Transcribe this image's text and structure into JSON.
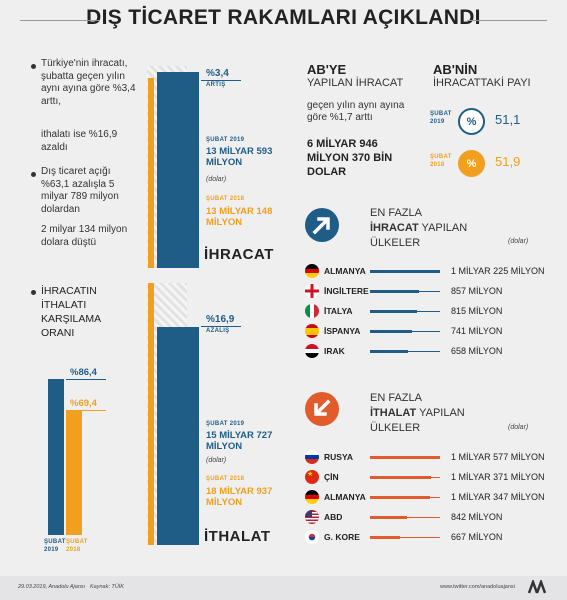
{
  "title": "DIŞ TİCARET RAKAMLARI AÇIKLANDI",
  "colors": {
    "blue": "#1f5d86",
    "orange": "#f0a01e",
    "red": "#e25b2a"
  },
  "left_notes": {
    "n1": "Türkiye'nin ihracatı, şubatta geçen yılın aynı ayına göre %3,4 arttı,",
    "n2": "ithalatı ise %16,9 azaldı",
    "n3": "Dış ticaret açığı %63,1 azalışla 5 milyar 789 milyon dolardan",
    "n4": "2 milyar 134 milyon dolara düştü",
    "n5": "İHRACATIN İTHALATI KARŞILAMA ORANI"
  },
  "export": {
    "pct": "%3,4",
    "pct_label": "ARTIŞ",
    "y2019_label": "ŞUBAT 2019",
    "y2019_value": "13 MİLYAR 593 MİLYON",
    "unit": "(dolar)",
    "y2018_label": "ŞUBAT 2018",
    "y2018_value": "13 MİLYAR 148 MİLYON",
    "name": "İHRACAT"
  },
  "import": {
    "pct": "%16,9",
    "pct_label": "AZALIŞ",
    "y2019_label": "ŞUBAT 2019",
    "y2019_value": "15 MİLYAR 727 MİLYON",
    "unit": "(dolar)",
    "y2018_label": "ŞUBAT 2018",
    "y2018_value": "18 MİLYAR 937 MİLYON",
    "name": "İTHALAT"
  },
  "coverage": {
    "v2019": "%86,4",
    "v2018": "%69,4",
    "l2019": "ŞUBAT 2019",
    "l2018": "ŞUBAT 2018"
  },
  "eu": {
    "h1": "AB'YE",
    "s1": "YAPILAN İHRACAT",
    "d1": "geçen yılın aynı ayına göre %1,7 arttı",
    "d2": "6 MİLYAR 946 MİLYON 370 BİN DOLAR",
    "h2": "AB'NİN",
    "s2": "İHRACATTAKİ PAYI",
    "p2019_label": "ŞUBAT 2019",
    "p2019": "51,1",
    "p2018_label": "ŞUBAT 2018",
    "p2018": "51,9",
    "pct_symbol": "%"
  },
  "top_export": {
    "h1": "EN FAZLA",
    "h2": "İHRACAT",
    "h2b": "YAPILAN",
    "h3": "ÜLKELER",
    "unit": "(dolar)",
    "rows": [
      {
        "country": "ALMANYA",
        "value": "1 MİLYAR 225 MİLYON",
        "amount": 1225
      },
      {
        "country": "İNGİLTERE",
        "value": "857 MİLYON",
        "amount": 857
      },
      {
        "country": "İTALYA",
        "value": "815 MİLYON",
        "amount": 815
      },
      {
        "country": "İSPANYA",
        "value": "741 MİLYON",
        "amount": 741
      },
      {
        "country": "IRAK",
        "value": "658 MİLYON",
        "amount": 658
      }
    ]
  },
  "top_import": {
    "h1": "EN FAZLA",
    "h2": "İTHALAT",
    "h2b": "YAPILAN",
    "h3": "ÜLKELER",
    "unit": "(dolar)",
    "rows": [
      {
        "country": "RUSYA",
        "value": "1 MİLYAR 577 MİLYON",
        "amount": 1577
      },
      {
        "country": "ÇİN",
        "value": "1 MİLYAR 371 MİLYON",
        "amount": 1371
      },
      {
        "country": "ALMANYA",
        "value": "1 MİLYAR 347 MİLYON",
        "amount": 1347
      },
      {
        "country": "ABD",
        "value": "842 MİLYON",
        "amount": 842
      },
      {
        "country": "G. KORE",
        "value": "667 MİLYON",
        "amount": 667
      }
    ]
  },
  "footer": {
    "date": "29.03.2019, Anadolu Ajansı",
    "source": "Kaynak: TÜİK",
    "twitter": "www.twitter.com/anadoluajansi"
  },
  "chart_data": [
    {
      "type": "bar",
      "title": "İHRACAT",
      "unit": "dolar",
      "categories": [
        "ŞUBAT 2018",
        "ŞUBAT 2019"
      ],
      "values": [
        13148,
        13593
      ]
    },
    {
      "type": "bar",
      "title": "İTHALAT",
      "unit": "dolar",
      "categories": [
        "ŞUBAT 2018",
        "ŞUBAT 2019"
      ],
      "values": [
        18937,
        15727
      ]
    },
    {
      "type": "bar",
      "title": "İHRACATIN İTHALATI KARŞILAMA ORANI",
      "categories": [
        "ŞUBAT 2019",
        "ŞUBAT 2018"
      ],
      "values": [
        86.4,
        69.4
      ]
    },
    {
      "type": "bar",
      "title": "EN FAZLA İHRACAT YAPILAN ÜLKELER",
      "categories": [
        "ALMANYA",
        "İNGİLTERE",
        "İTALYA",
        "İSPANYA",
        "IRAK"
      ],
      "values": [
        1225,
        857,
        815,
        741,
        658
      ]
    },
    {
      "type": "bar",
      "title": "EN FAZLA İTHALAT YAPILAN ÜLKELER",
      "categories": [
        "RUSYA",
        "ÇİN",
        "ALMANYA",
        "ABD",
        "G. KORE"
      ],
      "values": [
        1577,
        1371,
        1347,
        842,
        667
      ]
    }
  ]
}
